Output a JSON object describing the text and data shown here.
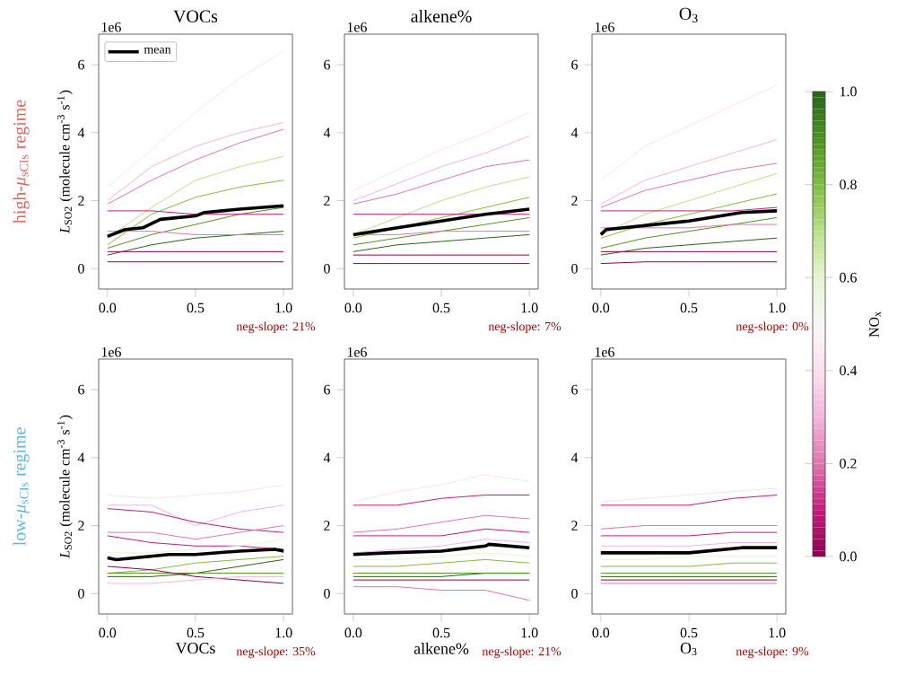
{
  "chart_data": [
    {
      "type": "line",
      "title": "VOCs",
      "ylabel": "*L*$_{SO2}$ (molecule cm$^{-3}$ s$^{-1}$)",
      "annotations": [
        "1e6",
        "neg-slope: 21%",
        "high-*μ*$_{sCIs}$ regime"
      ],
      "xlim": [
        -0.05,
        1.05
      ],
      "ylim": [
        -0.6,
        6.9
      ],
      "xticks": [
        {
          "value": 0,
          "label": "0.0"
        },
        {
          "value": 0.5,
          "label": "0.5"
        },
        {
          "value": 1,
          "label": "1.0"
        }
      ],
      "yticks": [
        0,
        2,
        4,
        6
      ],
      "legend": "top left",
      "series": [
        {
          "color": "#fde0ef",
          "x": [
            0,
            0.25,
            0.5,
            0.75,
            1
          ],
          "values": [
            2.4,
            3.5,
            4.6,
            5.6,
            6.4
          ]
        },
        {
          "color": "#f1b6da",
          "x": [
            0,
            0.25,
            0.5,
            0.75,
            1
          ],
          "values": [
            2.0,
            3.0,
            3.6,
            4.0,
            4.3
          ]
        },
        {
          "color": "#de77ae",
          "x": [
            0,
            0.25,
            0.5,
            0.75,
            1
          ],
          "values": [
            1.9,
            2.6,
            3.2,
            3.7,
            4.1
          ]
        },
        {
          "color": "#b8e186",
          "x": [
            0,
            0.25,
            0.5,
            0.75,
            1
          ],
          "values": [
            0.9,
            1.8,
            2.6,
            3.0,
            3.3
          ]
        },
        {
          "color": "#7fbc41",
          "x": [
            0,
            0.25,
            0.5,
            0.75,
            1
          ],
          "values": [
            0.7,
            1.6,
            2.1,
            2.4,
            2.6
          ]
        },
        {
          "color": "#4d9221",
          "x": [
            0,
            0.25,
            0.5,
            0.75,
            1
          ],
          "values": [
            0.6,
            1.0,
            1.3,
            1.6,
            1.8
          ]
        },
        {
          "color": "#276419",
          "x": [
            0,
            0.25,
            0.5,
            0.75,
            1
          ],
          "values": [
            0.4,
            0.7,
            0.9,
            1.0,
            1.1
          ]
        },
        {
          "color": "#c51b7d",
          "x": [
            0,
            0.25,
            0.5,
            0.75,
            1
          ],
          "values": [
            1.7,
            1.7,
            1.6,
            1.6,
            1.6
          ]
        },
        {
          "color": "#8e0152",
          "x": [
            0,
            0.25,
            0.5,
            0.75,
            1
          ],
          "values": [
            0.5,
            0.5,
            0.5,
            0.5,
            0.5
          ]
        },
        {
          "color": "#8e0152",
          "x": [
            0,
            0.25,
            0.5,
            0.75,
            1
          ],
          "values": [
            0.2,
            0.2,
            0.2,
            0.2,
            0.2
          ]
        },
        {
          "color": "#de77ae",
          "x": [
            0,
            0.25,
            0.5,
            0.75,
            1
          ],
          "values": [
            1.1,
            1.1,
            1.0,
            1.0,
            1.0
          ]
        },
        {
          "name": "mean",
          "color": "#000000",
          "x": [
            0,
            0.1,
            0.2,
            0.3,
            0.5,
            0.55,
            0.75,
            1
          ],
          "values": [
            0.95,
            1.15,
            1.2,
            1.45,
            1.55,
            1.65,
            1.75,
            1.85
          ]
        }
      ]
    },
    {
      "type": "line",
      "title": "alkene%",
      "annotations": [
        "1e6",
        "neg-slope: 7%"
      ],
      "xlim": [
        -0.05,
        1.05
      ],
      "ylim": [
        -0.6,
        6.9
      ],
      "xticks": [
        {
          "value": 0,
          "label": "0.0"
        },
        {
          "value": 0.5,
          "label": "0.5"
        },
        {
          "value": 1,
          "label": "1.0"
        }
      ],
      "yticks": [
        0,
        2,
        4,
        6
      ],
      "series": [
        {
          "color": "#fde0ef",
          "x": [
            0,
            0.25,
            0.5,
            0.75,
            1
          ],
          "values": [
            2.3,
            2.9,
            3.5,
            4.0,
            4.6
          ]
        },
        {
          "color": "#f1b6da",
          "x": [
            0,
            0.25,
            0.5,
            0.75,
            1
          ],
          "values": [
            2.0,
            2.5,
            3.0,
            3.4,
            3.9
          ]
        },
        {
          "color": "#de77ae",
          "x": [
            0,
            0.25,
            0.5,
            0.75,
            1
          ],
          "values": [
            1.9,
            2.2,
            2.6,
            3.0,
            3.2
          ]
        },
        {
          "color": "#b8e186",
          "x": [
            0,
            0.25,
            0.5,
            0.75,
            1
          ],
          "values": [
            1.0,
            1.5,
            2.0,
            2.4,
            2.7
          ]
        },
        {
          "color": "#7fbc41",
          "x": [
            0,
            0.25,
            0.5,
            0.75,
            1
          ],
          "values": [
            0.9,
            1.2,
            1.5,
            1.8,
            2.1
          ]
        },
        {
          "color": "#4d9221",
          "x": [
            0,
            0.25,
            0.5,
            0.75,
            1
          ],
          "values": [
            0.7,
            0.9,
            1.1,
            1.3,
            1.5
          ]
        },
        {
          "color": "#276419",
          "x": [
            0,
            0.25,
            0.5,
            0.75,
            1
          ],
          "values": [
            0.5,
            0.7,
            0.8,
            0.9,
            1.0
          ]
        },
        {
          "color": "#c51b7d",
          "x": [
            0,
            0.25,
            0.5,
            0.75,
            1
          ],
          "values": [
            1.6,
            1.6,
            1.6,
            1.6,
            1.6
          ]
        },
        {
          "color": "#8e0152",
          "x": [
            0,
            0.25,
            0.5,
            0.75,
            1
          ],
          "values": [
            0.4,
            0.4,
            0.4,
            0.4,
            0.4
          ]
        },
        {
          "color": "#8e0152",
          "x": [
            0,
            0.25,
            0.5,
            0.75,
            1
          ],
          "values": [
            0.15,
            0.15,
            0.15,
            0.15,
            0.15
          ]
        },
        {
          "color": "#de77ae",
          "x": [
            0,
            0.25,
            0.5,
            0.75,
            1
          ],
          "values": [
            1.0,
            1.0,
            1.1,
            1.1,
            1.1
          ]
        },
        {
          "color": "#000000",
          "x": [
            0,
            0.25,
            0.5,
            0.75,
            1
          ],
          "values": [
            1.0,
            1.2,
            1.4,
            1.6,
            1.75
          ]
        }
      ]
    },
    {
      "type": "line",
      "title": "O$_{3}$",
      "annotations": [
        "1e6",
        "neg-slope: 0%"
      ],
      "xlim": [
        -0.05,
        1.05
      ],
      "ylim": [
        -0.6,
        6.9
      ],
      "xticks": [
        {
          "value": 0,
          "label": "0.0"
        },
        {
          "value": 0.5,
          "label": "0.5"
        },
        {
          "value": 1,
          "label": "1.0"
        }
      ],
      "yticks": [
        0,
        2,
        4,
        6
      ],
      "clabel": "NO$_{x}$",
      "clim": [
        0,
        1
      ],
      "cticks": [
        {
          "value": 0,
          "label": "0.0"
        },
        {
          "value": 0.2,
          "label": "0.2"
        },
        {
          "value": 0.4,
          "label": "0.4"
        },
        {
          "value": 0.6,
          "label": "0.6"
        },
        {
          "value": 0.8,
          "label": "0.8"
        },
        {
          "value": 1,
          "label": "1.0"
        }
      ],
      "series": [
        {
          "color": "#fde0ef",
          "x": [
            0,
            0.25,
            0.5,
            0.75,
            1
          ],
          "values": [
            2.6,
            3.6,
            4.2,
            4.8,
            5.4
          ]
        },
        {
          "color": "#f1b6da",
          "x": [
            0,
            0.25,
            0.5,
            0.75,
            1
          ],
          "values": [
            1.9,
            2.6,
            3.0,
            3.4,
            3.8
          ]
        },
        {
          "color": "#de77ae",
          "x": [
            0,
            0.25,
            0.5,
            0.75,
            1
          ],
          "values": [
            1.8,
            2.3,
            2.6,
            2.9,
            3.1
          ]
        },
        {
          "color": "#b8e186",
          "x": [
            0,
            0.25,
            0.5,
            0.75,
            1
          ],
          "values": [
            1.0,
            1.6,
            2.0,
            2.4,
            2.8
          ]
        },
        {
          "color": "#7fbc41",
          "x": [
            0,
            0.25,
            0.5,
            0.75,
            1
          ],
          "values": [
            0.9,
            1.3,
            1.6,
            1.9,
            2.2
          ]
        },
        {
          "color": "#4d9221",
          "x": [
            0,
            0.25,
            0.5,
            0.75,
            1
          ],
          "values": [
            0.6,
            0.9,
            1.1,
            1.3,
            1.5
          ]
        },
        {
          "color": "#276419",
          "x": [
            0,
            0.25,
            0.5,
            0.75,
            1
          ],
          "values": [
            0.4,
            0.6,
            0.7,
            0.8,
            0.9
          ]
        },
        {
          "color": "#c51b7d",
          "x": [
            0,
            0.25,
            0.5,
            0.75,
            1
          ],
          "values": [
            1.7,
            1.7,
            1.7,
            1.7,
            1.8
          ]
        },
        {
          "color": "#8e0152",
          "x": [
            0,
            0.25,
            0.5,
            0.75,
            1
          ],
          "values": [
            0.5,
            0.5,
            0.5,
            0.5,
            0.5
          ]
        },
        {
          "color": "#8e0152",
          "x": [
            0,
            0.25,
            0.5,
            0.75,
            1
          ],
          "values": [
            0.15,
            0.2,
            0.2,
            0.2,
            0.2
          ]
        },
        {
          "color": "#de77ae",
          "x": [
            0,
            0.25,
            0.5,
            0.75,
            1
          ],
          "values": [
            1.2,
            1.2,
            1.2,
            1.3,
            1.3
          ]
        },
        {
          "color": "#000000",
          "x": [
            0,
            0.03,
            0.5,
            0.8,
            1
          ],
          "values": [
            1.0,
            1.15,
            1.4,
            1.65,
            1.7
          ]
        }
      ]
    },
    {
      "type": "line",
      "xlabel": "VOCs",
      "ylabel": "*L*$_{SO2}$ (molecule cm$^{-3}$ s$^{-1}$)",
      "annotations": [
        "1e6",
        "neg-slope: 35%",
        "low-*μ*$_{sCIs}$ regime"
      ],
      "xlim": [
        -0.05,
        1.05
      ],
      "ylim": [
        -0.6,
        6.9
      ],
      "xticks": [
        {
          "value": 0,
          "label": "0.0"
        },
        {
          "value": 0.5,
          "label": "0.5"
        },
        {
          "value": 1,
          "label": "1.0"
        }
      ],
      "yticks": [
        0,
        2,
        4,
        6
      ],
      "series": [
        {
          "color": "#fde0ef",
          "x": [
            0,
            0.25,
            0.5,
            0.75,
            1
          ],
          "values": [
            2.9,
            2.8,
            2.9,
            3.0,
            3.2
          ]
        },
        {
          "color": "#f1b6da",
          "x": [
            0,
            0.25,
            0.5,
            0.75,
            1
          ],
          "values": [
            2.6,
            2.6,
            2.0,
            2.4,
            2.6
          ]
        },
        {
          "color": "#c51b7d",
          "x": [
            0,
            0.25,
            0.5,
            0.75,
            1
          ],
          "values": [
            2.5,
            2.4,
            2.1,
            1.9,
            1.8
          ]
        },
        {
          "color": "#c51b7d",
          "x": [
            0,
            0.25,
            0.5,
            0.75,
            1
          ],
          "values": [
            1.7,
            1.5,
            1.4,
            1.4,
            1.3
          ]
        },
        {
          "color": "#de77ae",
          "x": [
            0,
            0.25,
            0.5,
            0.75,
            1
          ],
          "values": [
            1.8,
            1.8,
            1.6,
            1.8,
            2.0
          ]
        },
        {
          "color": "#e6f5d0",
          "x": [
            0,
            0.25,
            0.5,
            0.75,
            1
          ],
          "values": [
            1.2,
            1.2,
            1.3,
            1.4,
            1.6
          ]
        },
        {
          "color": "#7fbc41",
          "x": [
            0,
            0.25,
            0.5,
            0.75,
            1
          ],
          "values": [
            0.6,
            0.7,
            0.9,
            1.0,
            1.1
          ]
        },
        {
          "color": "#276419",
          "x": [
            0,
            0.25,
            0.5,
            0.75,
            1
          ],
          "values": [
            0.5,
            0.5,
            0.6,
            0.8,
            1.0
          ]
        },
        {
          "color": "#4d9221",
          "x": [
            0,
            0.25,
            0.5,
            0.75,
            1
          ],
          "values": [
            0.6,
            0.6,
            0.6,
            0.6,
            0.6
          ]
        },
        {
          "color": "#8e0152",
          "x": [
            0,
            0.25,
            0.5,
            0.75,
            1
          ],
          "values": [
            0.8,
            0.7,
            0.5,
            0.4,
            0.3
          ]
        },
        {
          "color": "#f1b6da",
          "x": [
            0,
            0.25,
            0.5,
            0.75,
            1
          ],
          "values": [
            0.3,
            0.3,
            0.4,
            0.5,
            0.5
          ]
        },
        {
          "color": "#000000",
          "x": [
            0,
            0.05,
            0.35,
            0.5,
            0.75,
            0.95,
            1
          ],
          "values": [
            1.05,
            1.0,
            1.15,
            1.15,
            1.25,
            1.3,
            1.25
          ]
        }
      ]
    },
    {
      "type": "line",
      "xlabel": "alkene%",
      "annotations": [
        "1e6",
        "neg-slope: 21%"
      ],
      "xlim": [
        -0.05,
        1.05
      ],
      "ylim": [
        -0.6,
        6.9
      ],
      "xticks": [
        {
          "value": 0,
          "label": "0.0"
        },
        {
          "value": 0.5,
          "label": "0.5"
        },
        {
          "value": 1,
          "label": "1.0"
        }
      ],
      "yticks": [
        0,
        2,
        4,
        6
      ],
      "series": [
        {
          "color": "#fde0ef",
          "x": [
            0,
            0.25,
            0.5,
            0.75,
            1
          ],
          "values": [
            2.7,
            3.0,
            3.2,
            3.5,
            3.3
          ]
        },
        {
          "color": "#c51b7d",
          "x": [
            0,
            0.25,
            0.5,
            0.75,
            1
          ],
          "values": [
            2.6,
            2.6,
            2.8,
            2.9,
            2.9
          ]
        },
        {
          "color": "#de77ae",
          "x": [
            0,
            0.25,
            0.5,
            0.75,
            1
          ],
          "values": [
            1.8,
            1.9,
            2.1,
            2.3,
            2.2
          ]
        },
        {
          "color": "#c51b7d",
          "x": [
            0,
            0.25,
            0.5,
            0.75,
            1
          ],
          "values": [
            1.7,
            1.7,
            1.7,
            1.9,
            1.8
          ]
        },
        {
          "color": "#f1b6da",
          "x": [
            0,
            0.25,
            0.5,
            0.75,
            1
          ],
          "values": [
            1.2,
            1.3,
            1.4,
            1.6,
            1.5
          ]
        },
        {
          "color": "#7fbc41",
          "x": [
            0,
            0.25,
            0.5,
            0.75,
            1
          ],
          "values": [
            0.8,
            0.8,
            0.9,
            1.0,
            0.9
          ]
        },
        {
          "color": "#276419",
          "x": [
            0,
            0.25,
            0.5,
            0.75,
            1
          ],
          "values": [
            0.5,
            0.5,
            0.5,
            0.6,
            0.6
          ]
        },
        {
          "color": "#4d9221",
          "x": [
            0,
            0.25,
            0.5,
            0.75,
            1
          ],
          "values": [
            0.6,
            0.6,
            0.6,
            0.6,
            0.6
          ]
        },
        {
          "color": "#de77ae",
          "x": [
            0,
            0.25,
            0.5,
            0.75,
            1
          ],
          "values": [
            0.2,
            0.2,
            0.1,
            0.1,
            -0.2
          ]
        },
        {
          "color": "#e6f5d0",
          "x": [
            0,
            0.25,
            0.5,
            0.75,
            1
          ],
          "values": [
            1.0,
            1.0,
            1.1,
            1.2,
            1.1
          ]
        },
        {
          "color": "#8e0152",
          "x": [
            0,
            0.25,
            0.5,
            0.75,
            1
          ],
          "values": [
            0.4,
            0.4,
            0.4,
            0.4,
            0.4
          ]
        },
        {
          "color": "#000000",
          "x": [
            0,
            0.2,
            0.5,
            0.75,
            0.77,
            1
          ],
          "values": [
            1.15,
            1.2,
            1.25,
            1.4,
            1.45,
            1.35
          ]
        }
      ]
    },
    {
      "type": "line",
      "xlabel": "O$_{3}$",
      "annotations": [
        "1e6",
        "neg-slope: 9%"
      ],
      "xlim": [
        -0.05,
        1.05
      ],
      "ylim": [
        -0.6,
        6.9
      ],
      "xticks": [
        {
          "value": 0,
          "label": "0.0"
        },
        {
          "value": 0.5,
          "label": "0.5"
        },
        {
          "value": 1,
          "label": "1.0"
        }
      ],
      "yticks": [
        0,
        2,
        4,
        6
      ],
      "series": [
        {
          "color": "#fde0ef",
          "x": [
            0,
            0.25,
            0.5,
            0.75,
            1
          ],
          "values": [
            2.7,
            2.8,
            2.9,
            3.0,
            3.1
          ]
        },
        {
          "color": "#c51b7d",
          "x": [
            0,
            0.25,
            0.5,
            0.75,
            1
          ],
          "values": [
            2.6,
            2.6,
            2.6,
            2.8,
            2.9
          ]
        },
        {
          "color": "#de77ae",
          "x": [
            0,
            0.25,
            0.5,
            0.75,
            1
          ],
          "values": [
            1.9,
            2.0,
            2.0,
            2.0,
            2.0
          ]
        },
        {
          "color": "#c51b7d",
          "x": [
            0,
            0.25,
            0.5,
            0.75,
            1
          ],
          "values": [
            1.7,
            1.7,
            1.7,
            1.8,
            1.8
          ]
        },
        {
          "color": "#f1b6da",
          "x": [
            0,
            0.25,
            0.5,
            0.75,
            1
          ],
          "values": [
            1.4,
            1.4,
            1.4,
            1.5,
            1.5
          ]
        },
        {
          "color": "#e6f5d0",
          "x": [
            0,
            0.25,
            0.5,
            0.75,
            1
          ],
          "values": [
            1.0,
            1.0,
            1.1,
            1.1,
            1.1
          ]
        },
        {
          "color": "#7fbc41",
          "x": [
            0,
            0.25,
            0.5,
            0.75,
            1
          ],
          "values": [
            0.8,
            0.8,
            0.8,
            0.9,
            0.9
          ]
        },
        {
          "color": "#276419",
          "x": [
            0,
            0.25,
            0.5,
            0.75,
            1
          ],
          "values": [
            0.5,
            0.5,
            0.5,
            0.5,
            0.5
          ]
        },
        {
          "color": "#4d9221",
          "x": [
            0,
            0.25,
            0.5,
            0.75,
            1
          ],
          "values": [
            0.6,
            0.6,
            0.6,
            0.6,
            0.6
          ]
        },
        {
          "color": "#8e0152",
          "x": [
            0,
            0.25,
            0.5,
            0.75,
            1
          ],
          "values": [
            0.4,
            0.4,
            0.4,
            0.4,
            0.4
          ]
        },
        {
          "color": "#de77ae",
          "x": [
            0,
            0.25,
            0.5,
            0.75,
            1
          ],
          "values": [
            0.3,
            0.3,
            0.3,
            0.3,
            0.3
          ]
        },
        {
          "color": "#000000",
          "x": [
            0,
            0.5,
            0.8,
            1
          ],
          "values": [
            1.2,
            1.2,
            1.35,
            1.35
          ]
        }
      ]
    }
  ]
}
